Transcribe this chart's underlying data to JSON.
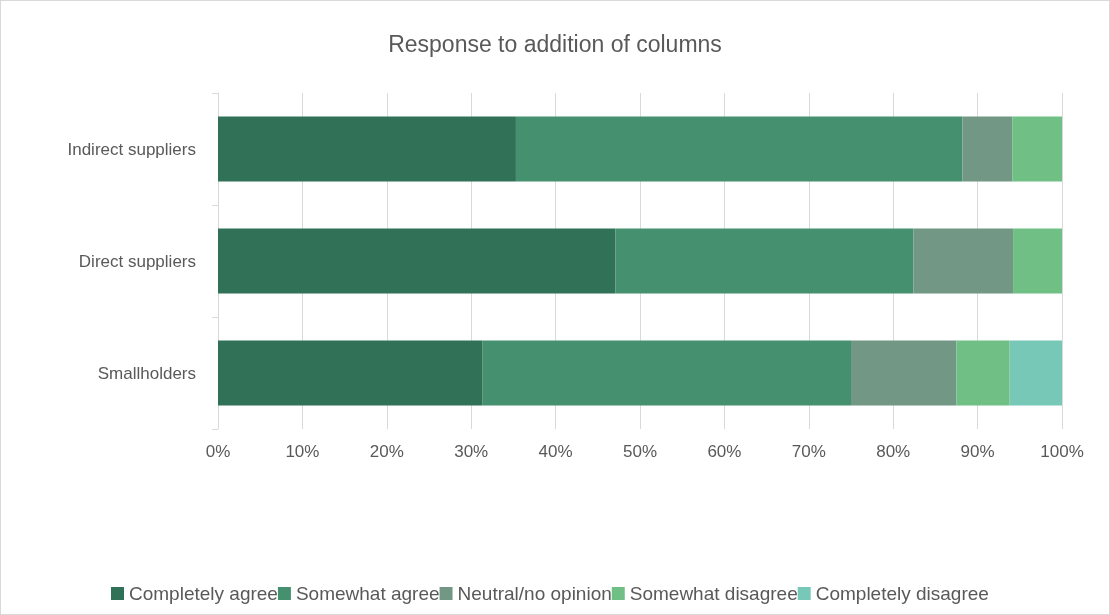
{
  "chart_data": {
    "type": "bar",
    "orientation": "horizontal",
    "stacked": true,
    "title": "Response to addition of columns",
    "categories": [
      "Indirect suppliers",
      "Direct suppliers",
      "Smallholders"
    ],
    "series": [
      {
        "name": "Completely agree",
        "color": "#317157",
        "values": [
          35.3,
          47.1,
          31.3
        ]
      },
      {
        "name": "Somewhat agree",
        "color": "#45916f",
        "values": [
          52.9,
          35.3,
          43.7
        ]
      },
      {
        "name": "Neutral/no opinion",
        "color": "#729785",
        "values": [
          5.9,
          11.8,
          12.5
        ]
      },
      {
        "name": "Somewhat disagree",
        "color": "#70c086",
        "values": [
          5.9,
          5.8,
          6.3
        ]
      },
      {
        "name": "Completely disagree",
        "color": "#78c8b8",
        "values": [
          null,
          null,
          6.2
        ]
      }
    ],
    "xlim": [
      0,
      100
    ],
    "xticks": [
      {
        "value": 0,
        "label": "0%"
      },
      {
        "value": 10,
        "label": "10%"
      },
      {
        "value": 20,
        "label": "20%"
      },
      {
        "value": 30,
        "label": "30%"
      },
      {
        "value": 40,
        "label": "40%"
      },
      {
        "value": 50,
        "label": "50%"
      },
      {
        "value": 60,
        "label": "60%"
      },
      {
        "value": 70,
        "label": "70%"
      },
      {
        "value": 80,
        "label": "80%"
      },
      {
        "value": 90,
        "label": "90%"
      },
      {
        "value": 100,
        "label": "100%"
      }
    ],
    "grid": "x",
    "legend": "bottom"
  }
}
